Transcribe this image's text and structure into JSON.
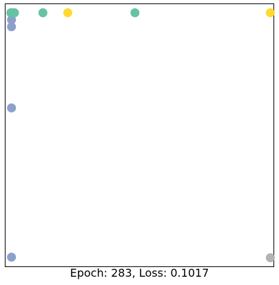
{
  "chart_data": {
    "type": "scatter",
    "caption": "Epoch: 283, Loss: 0.1017",
    "xlim": [
      -1.0,
      1.0
    ],
    "ylim": [
      -1.0,
      1.0
    ],
    "axes_ticks": false,
    "grid": false,
    "series": [
      {
        "color": "#8da0cb",
        "points": [
          [
            -0.953,
            0.878
          ],
          [
            -0.953,
            0.825
          ],
          [
            -0.953,
            0.208
          ],
          [
            -0.953,
            -0.927
          ]
        ]
      },
      {
        "color": "#66c2a5",
        "points": [
          [
            -0.958,
            0.932
          ],
          [
            -0.953,
            0.932
          ],
          [
            -0.948,
            0.932
          ],
          [
            -0.943,
            0.932
          ],
          [
            -0.931,
            0.932
          ],
          [
            -0.719,
            0.932
          ],
          [
            -0.034,
            0.932
          ]
        ]
      },
      {
        "color": "#ffd92f",
        "points": [
          [
            -0.534,
            0.932
          ],
          [
            0.974,
            0.932
          ]
        ]
      },
      {
        "color": "#b3b3b3",
        "points": [
          [
            0.974,
            -0.932
          ]
        ]
      }
    ]
  }
}
